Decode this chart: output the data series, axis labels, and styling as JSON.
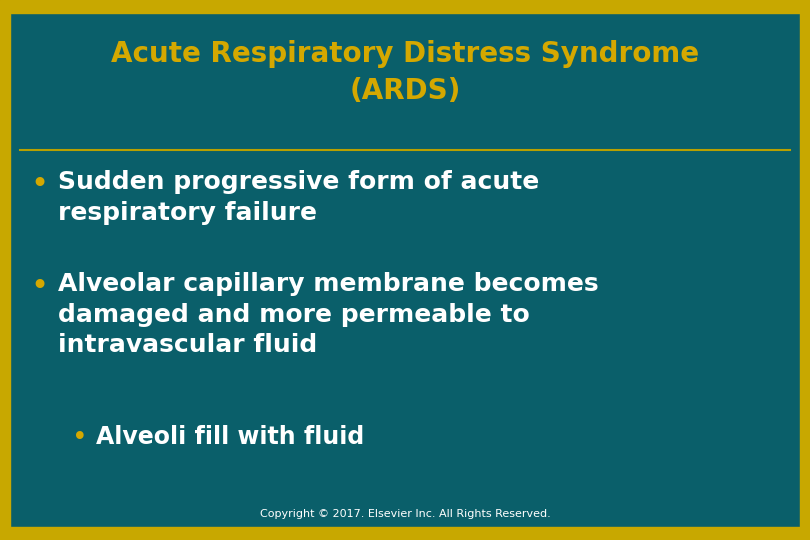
{
  "title_line1": "Acute Respiratory Distress Syndrome",
  "title_line2": "(ARDS)",
  "title_color": "#D4A800",
  "title_fontsize": 20,
  "background_color": "#0A5F6A",
  "border_color_top": "#C8A800",
  "border_color_bottom": "#C8A800",
  "border_linewidth": 3,
  "divider_color": "#B8A000",
  "divider_linewidth": 1.5,
  "bullet_text_color": "#FFFFFF",
  "bullet_dot_color": "#D4A800",
  "bullet_fontsize": 18,
  "sub_bullet_fontsize": 17,
  "copyright_text": "Copyright © 2017. Elsevier Inc. All Rights Reserved.",
  "copyright_fontsize": 8,
  "copyright_color": "#FFFFFF",
  "bullets": [
    "Sudden progressive form of acute\nrespiratory failure",
    "Alveolar capillary membrane becomes\ndamaged and more permeable to\nintravascular fluid"
  ],
  "sub_bullets": [
    "Alveoli fill with fluid"
  ],
  "sub_bullet_dot_color": "#D4A800",
  "fig_width": 8.1,
  "fig_height": 5.4,
  "dpi": 100
}
